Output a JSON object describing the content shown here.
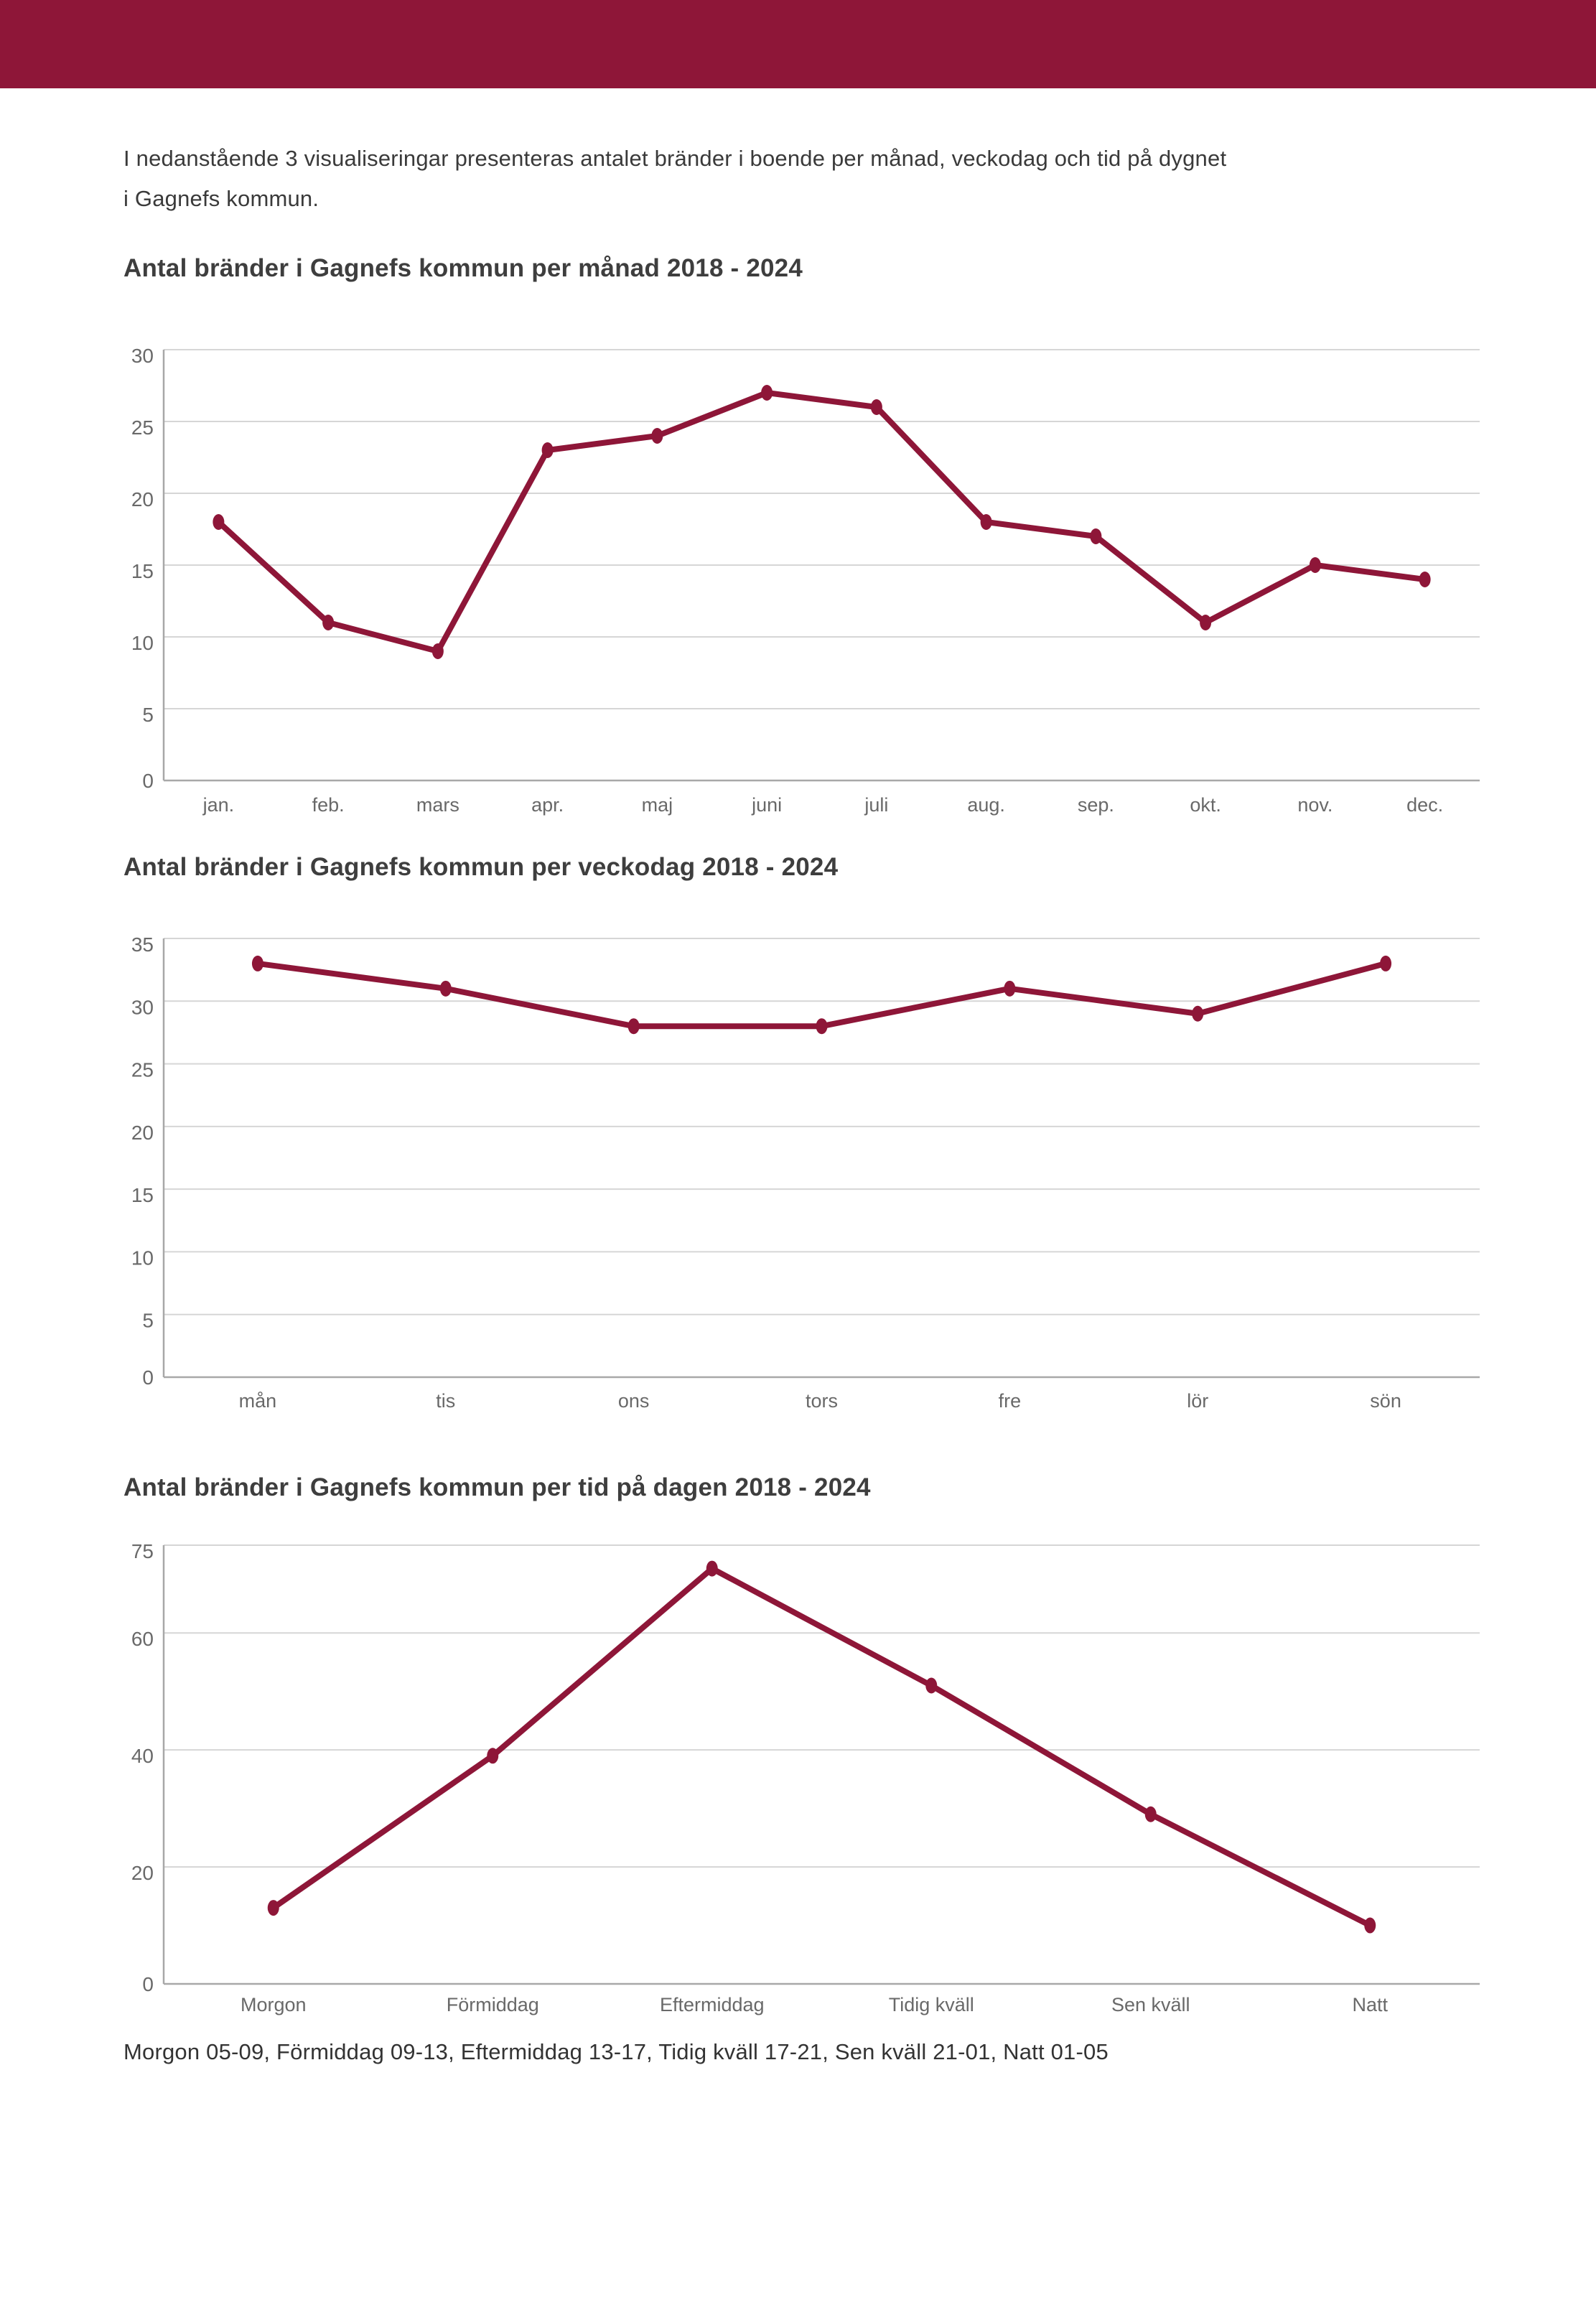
{
  "colors": {
    "brand": "#8E1638",
    "line": "#8E1638",
    "grid": "#d6d6d6",
    "axis": "#a8a8a8",
    "tick": "#696969",
    "title": "#3e3e3e",
    "body": "#3a3a3a"
  },
  "intro": {
    "line1": "I nedanstående 3 visualiseringar presenteras antalet bränder i boende per månad, veckodag och tid på dygnet",
    "line2": "i Gagnefs kommun."
  },
  "chart_data": [
    {
      "type": "line",
      "title": "Antal bränder i Gagnefs kommun per månad 2018 - 2024",
      "categories": [
        "jan.",
        "feb.",
        "mars",
        "apr.",
        "maj",
        "juni",
        "juli",
        "aug.",
        "sep.",
        "okt.",
        "nov.",
        "dec."
      ],
      "values": [
        18,
        11,
        9,
        23,
        24,
        27,
        26,
        18,
        17,
        11,
        15,
        14
      ],
      "xlabel": "",
      "ylabel": "",
      "ylim": [
        0,
        30
      ],
      "yticks": [
        0,
        5,
        10,
        15,
        20,
        25,
        30
      ],
      "grid": true,
      "legend": false
    },
    {
      "type": "line",
      "title": "Antal bränder i Gagnefs kommun per veckodag 2018 - 2024",
      "categories": [
        "mån",
        "tis",
        "ons",
        "tors",
        "fre",
        "lör",
        "sön"
      ],
      "values": [
        33,
        31,
        28,
        28,
        31,
        29,
        33
      ],
      "xlabel": "",
      "ylabel": "",
      "ylim": [
        0,
        35
      ],
      "yticks": [
        0,
        5,
        10,
        15,
        20,
        25,
        30,
        35
      ],
      "grid": true,
      "legend": false
    },
    {
      "type": "line",
      "title": "Antal bränder i Gagnefs kommun per tid på dagen 2018 - 2024",
      "categories": [
        "Morgon",
        "Förmiddag",
        "Eftermiddag",
        "Tidig kväll",
        "Sen kväll",
        "Natt"
      ],
      "values": [
        13,
        39,
        71,
        51,
        29,
        10
      ],
      "xlabel": "",
      "ylabel": "",
      "ylim": [
        0,
        75
      ],
      "yticks": [
        0,
        20,
        40,
        60,
        75
      ],
      "grid": true,
      "legend": false
    }
  ],
  "footer": {
    "text": "Morgon 05-09, Förmiddag 09-13, Eftermiddag 13-17, Tidig kväll 17-21, Sen kväll 21-01, Natt 01-05"
  }
}
